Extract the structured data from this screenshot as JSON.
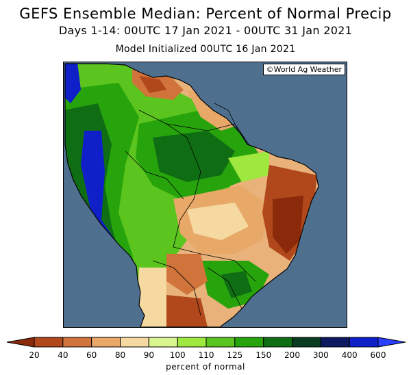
{
  "title": "GEFS Ensemble Median: Percent of Normal Precip",
  "subtitle": "Days 1-14: 00UTC 17 Jan 2021 - 00UTC 31 Jan 2021",
  "init_line": "Model Initialized 00UTC 16 Jan 2021",
  "credit": "©World Ag Weather",
  "colorbar": {
    "units_label": "percent of normal",
    "tick_labels": [
      "20",
      "40",
      "60",
      "80",
      "90",
      "100",
      "110",
      "125",
      "150",
      "200",
      "300",
      "400",
      "600"
    ],
    "colors": [
      "#8b2a0a",
      "#b0481c",
      "#d0743c",
      "#e7a868",
      "#f6d9a0",
      "#d9f590",
      "#9fe840",
      "#5bc41e",
      "#27a40c",
      "#0f6e14",
      "#0a3a20",
      "#0d1a60",
      "#1020c8",
      "#2a40ff"
    ]
  },
  "map": {
    "ocean_color": "#4f6f8f",
    "region": "South America"
  }
}
